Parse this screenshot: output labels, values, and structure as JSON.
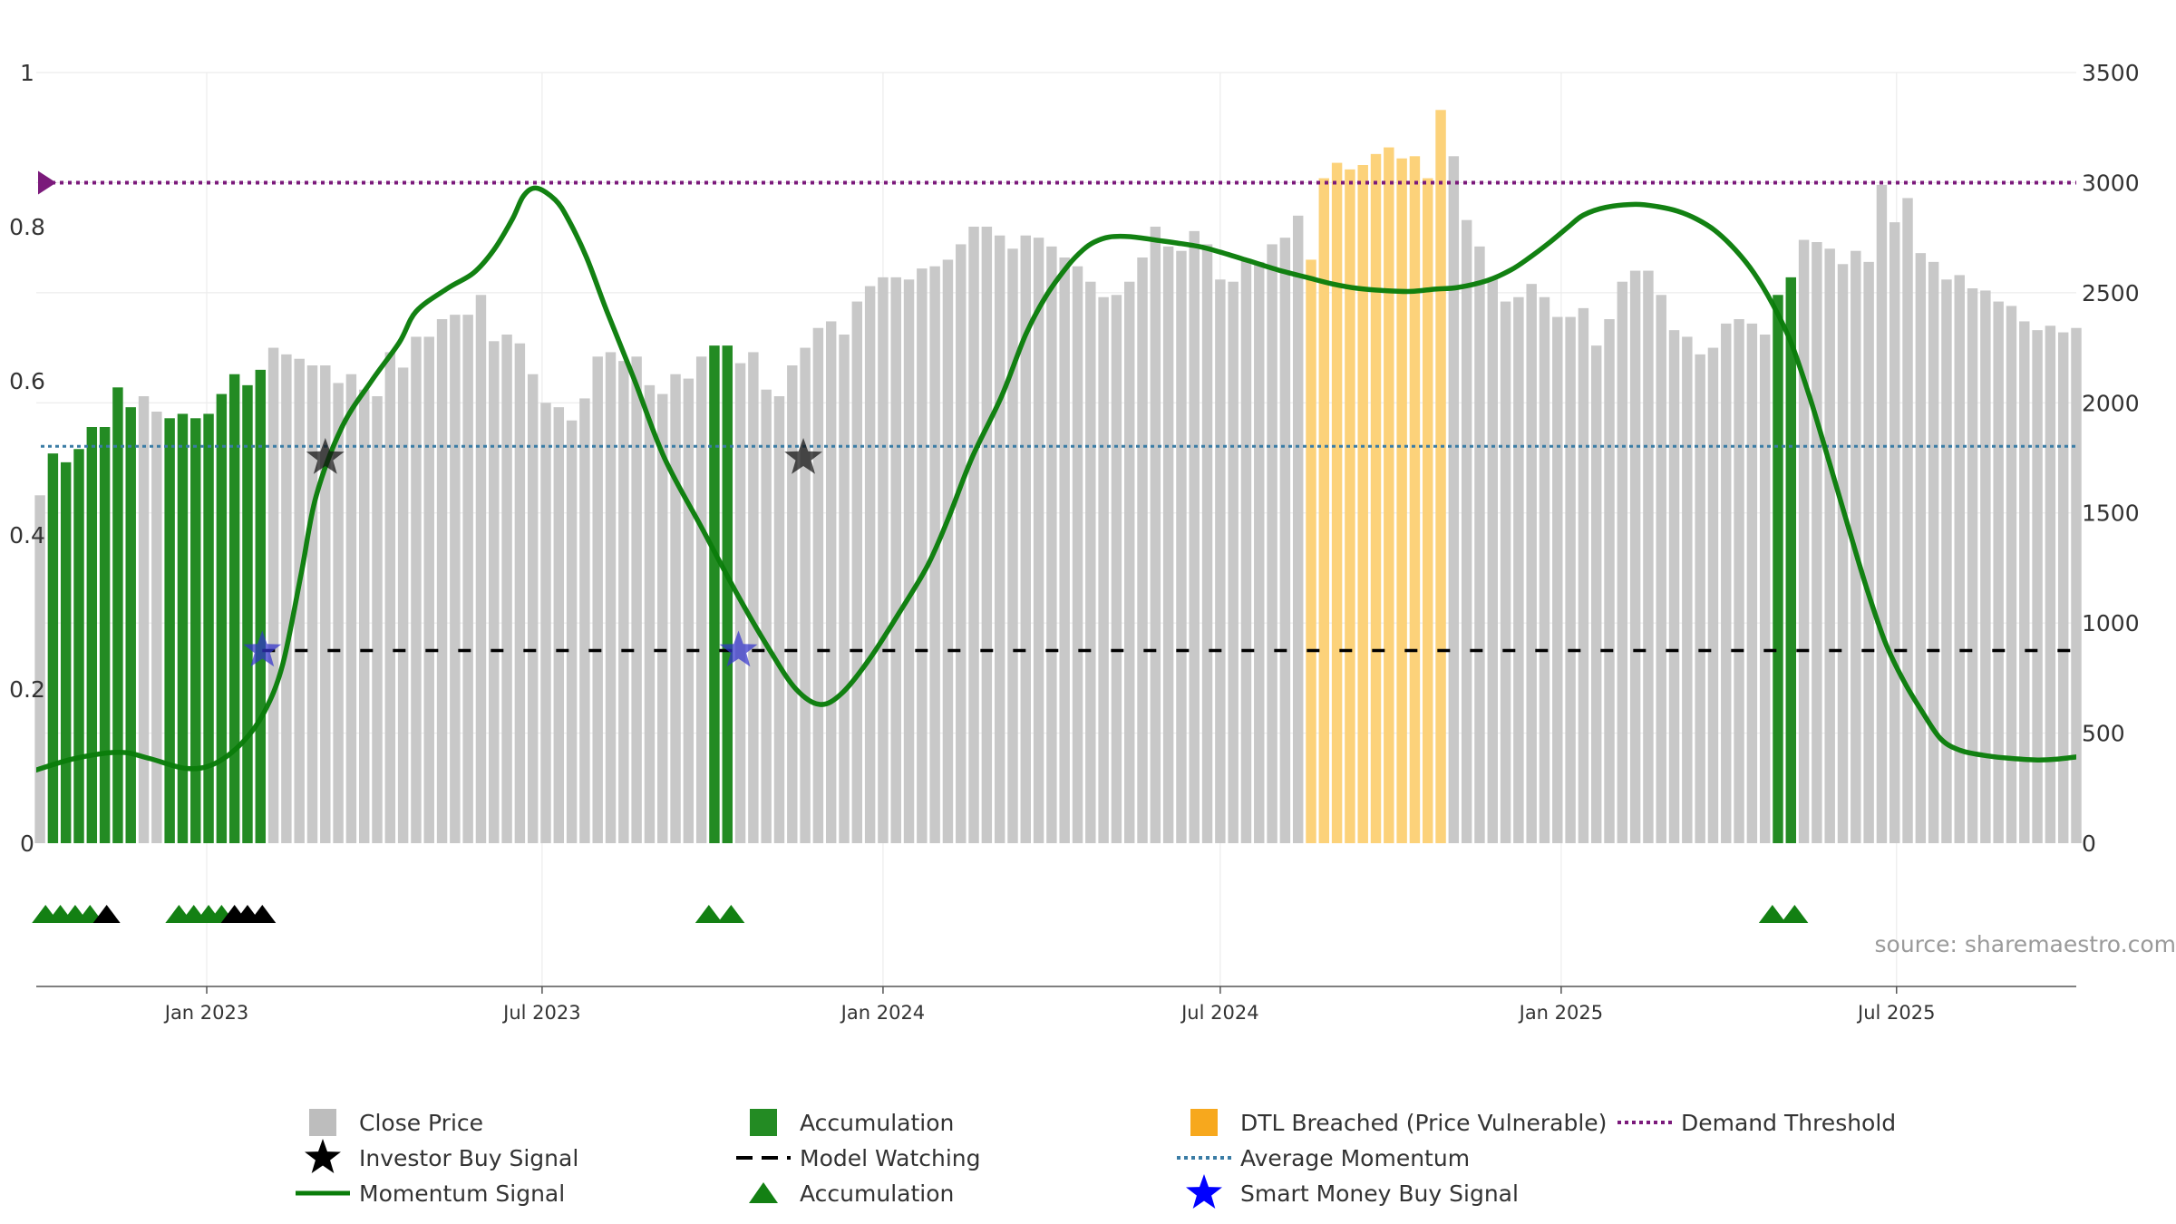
{
  "chart_data": {
    "type": "bar",
    "title": "",
    "x_range": [
      "2022-10-01",
      "2025-10-06"
    ],
    "left_axis": {
      "range": [
        0,
        1
      ],
      "ticks": [
        "0",
        "0.2",
        "0.4",
        "0.6",
        "0.8",
        "1"
      ],
      "tick_values": [
        0,
        0.2,
        0.4,
        0.6,
        0.8,
        1
      ]
    },
    "right_axis": {
      "range": [
        0,
        3500
      ],
      "ticks": [
        "0",
        "500",
        "1000",
        "1500",
        "2000",
        "2500",
        "3000",
        "3500"
      ],
      "tick_values": [
        0,
        500,
        1000,
        1500,
        2000,
        2500,
        3000,
        3500
      ]
    },
    "x_ticks": [
      {
        "label": "Jan 2023",
        "date": "2023-01-01"
      },
      {
        "label": "Jul 2023",
        "date": "2023-07-01"
      },
      {
        "label": "Jan 2024",
        "date": "2024-01-01"
      },
      {
        "label": "Jul 2024",
        "date": "2024-07-01"
      },
      {
        "label": "Jan 2025",
        "date": "2025-01-01"
      },
      {
        "label": "Jul 2025",
        "date": "2025-07-01"
      }
    ],
    "grid": true,
    "legend_position": "bottom",
    "close_price": {
      "start_date": "2022-10-03",
      "interval": "weekly",
      "values": [
        1580,
        1770,
        1730,
        1790,
        1890,
        1890,
        2070,
        1980,
        2030,
        1960,
        1930,
        1950,
        1930,
        1950,
        2040,
        2130,
        2080,
        2150,
        2250,
        2220,
        2200,
        2170,
        2170,
        2090,
        2130,
        2060,
        2030,
        2230,
        2160,
        2300,
        2300,
        2380,
        2400,
        2400,
        2490,
        2280,
        2310,
        2270,
        2130,
        2000,
        1980,
        1920,
        2020,
        2210,
        2230,
        2190,
        2210,
        2080,
        2040,
        2130,
        2110,
        2210,
        2260,
        2260,
        2180,
        2230,
        2060,
        2030,
        2170,
        2250,
        2340,
        2370,
        2310,
        2460,
        2530,
        2570,
        2570,
        2560,
        2610,
        2620,
        2650,
        2720,
        2800,
        2800,
        2760,
        2700,
        2760,
        2750,
        2710,
        2660,
        2620,
        2550,
        2480,
        2490,
        2550,
        2660,
        2800,
        2710,
        2690,
        2780,
        2720,
        2560,
        2550,
        2650,
        2640,
        2720,
        2750,
        2850,
        2650,
        3020,
        3090,
        3060,
        3080,
        3130,
        3160,
        3110,
        3120,
        3020,
        3330,
        3120,
        2830,
        2710,
        2560,
        2460,
        2480,
        2540,
        2480,
        2390,
        2390,
        2430,
        2260,
        2380,
        2550,
        2600,
        2600,
        2490,
        2330,
        2300,
        2220,
        2250,
        2360,
        2380,
        2360,
        2310,
        2490,
        2570,
        2740,
        2730,
        2700,
        2630,
        2690,
        2640,
        2990,
        2820,
        2930,
        2680,
        2640,
        2560,
        2580,
        2520,
        2510,
        2460,
        2440,
        2370,
        2330,
        2350,
        2320,
        2340
      ],
      "colored_bars": [
        {
          "class": "accumulation",
          "from": "2022-10-10",
          "to": "2022-11-21"
        },
        {
          "class": "accumulation",
          "from": "2022-12-12",
          "to": "2023-01-30"
        },
        {
          "class": "accumulation",
          "from": "2023-10-02",
          "to": "2023-10-09"
        },
        {
          "class": "dtl_breached",
          "from": "2024-08-19",
          "to": "2024-10-28"
        },
        {
          "class": "accumulation",
          "from": "2025-04-28",
          "to": "2025-05-05"
        }
      ]
    },
    "momentum_signal": {
      "points": [
        [
          "2022-10-01",
          0.095
        ],
        [
          "2022-10-22",
          0.11
        ],
        [
          "2022-11-15",
          0.118
        ],
        [
          "2022-12-01",
          0.11
        ],
        [
          "2022-12-21",
          0.097
        ],
        [
          "2023-01-05",
          0.103
        ],
        [
          "2023-01-20",
          0.13
        ],
        [
          "2023-02-01",
          0.17
        ],
        [
          "2023-02-11",
          0.232
        ],
        [
          "2023-02-21",
          0.35
        ],
        [
          "2023-03-01",
          0.45
        ],
        [
          "2023-03-15",
          0.54
        ],
        [
          "2023-03-31",
          0.6
        ],
        [
          "2023-04-15",
          0.65
        ],
        [
          "2023-04-24",
          0.69
        ],
        [
          "2023-05-11",
          0.72
        ],
        [
          "2023-05-25",
          0.74
        ],
        [
          "2023-06-05",
          0.77
        ],
        [
          "2023-06-15",
          0.81
        ],
        [
          "2023-06-21",
          0.84
        ],
        [
          "2023-06-28",
          0.85
        ],
        [
          "2023-07-08",
          0.835
        ],
        [
          "2023-07-15",
          0.81
        ],
        [
          "2023-07-25",
          0.76
        ],
        [
          "2023-08-05",
          0.69
        ],
        [
          "2023-08-20",
          0.6
        ],
        [
          "2023-09-05",
          0.5
        ],
        [
          "2023-09-25",
          0.41
        ],
        [
          "2023-10-15",
          0.32
        ],
        [
          "2023-11-01",
          0.25
        ],
        [
          "2023-11-15",
          0.2
        ],
        [
          "2023-11-28",
          0.18
        ],
        [
          "2023-12-10",
          0.195
        ],
        [
          "2023-12-25",
          0.24
        ],
        [
          "2024-01-10",
          0.3
        ],
        [
          "2024-01-25",
          0.36
        ],
        [
          "2024-02-05",
          0.42
        ],
        [
          "2024-02-18",
          0.5
        ],
        [
          "2024-03-05",
          0.58
        ],
        [
          "2024-03-18",
          0.66
        ],
        [
          "2024-03-29",
          0.71
        ],
        [
          "2024-04-10",
          0.75
        ],
        [
          "2024-04-18",
          0.77
        ],
        [
          "2024-04-24",
          0.78
        ],
        [
          "2024-05-02",
          0.7865
        ],
        [
          "2024-05-13",
          0.787
        ],
        [
          "2024-05-29",
          0.782
        ],
        [
          "2024-06-07",
          0.779
        ],
        [
          "2024-06-20",
          0.774
        ],
        [
          "2024-07-01",
          0.767
        ],
        [
          "2024-07-16",
          0.756
        ],
        [
          "2024-08-01",
          0.744
        ],
        [
          "2024-08-17",
          0.734
        ],
        [
          "2024-08-30",
          0.726
        ],
        [
          "2024-09-13",
          0.72
        ],
        [
          "2024-09-28",
          0.717
        ],
        [
          "2024-10-12",
          0.716
        ],
        [
          "2024-10-25",
          0.719
        ],
        [
          "2024-11-06",
          0.721
        ],
        [
          "2024-11-22",
          0.73
        ],
        [
          "2024-12-05",
          0.744
        ],
        [
          "2024-12-15",
          0.76
        ],
        [
          "2024-12-26",
          0.78
        ],
        [
          "2025-01-05",
          0.8
        ],
        [
          "2025-01-13",
          0.815
        ],
        [
          "2025-01-25",
          0.825
        ],
        [
          "2025-02-10",
          0.829
        ],
        [
          "2025-02-22",
          0.826
        ],
        [
          "2025-03-05",
          0.82
        ],
        [
          "2025-03-15",
          0.81
        ],
        [
          "2025-03-25",
          0.795
        ],
        [
          "2025-04-05",
          0.77
        ],
        [
          "2025-04-15",
          0.74
        ],
        [
          "2025-04-25",
          0.7
        ],
        [
          "2025-05-05",
          0.65
        ],
        [
          "2025-05-15",
          0.58
        ],
        [
          "2025-05-25",
          0.5
        ],
        [
          "2025-06-05",
          0.41
        ],
        [
          "2025-06-15",
          0.33
        ],
        [
          "2025-06-25",
          0.26
        ],
        [
          "2025-07-05",
          0.21
        ],
        [
          "2025-07-15",
          0.17
        ],
        [
          "2025-07-25",
          0.135
        ],
        [
          "2025-08-05",
          0.12
        ],
        [
          "2025-08-20",
          0.113
        ],
        [
          "2025-09-01",
          0.11
        ],
        [
          "2025-09-15",
          0.108
        ],
        [
          "2025-09-25",
          0.109
        ],
        [
          "2025-10-06",
          0.112
        ]
      ]
    },
    "average_momentum": 0.515,
    "demand_threshold": 0.857,
    "model_watching_level": 0.25,
    "investor_buy_signals": [
      {
        "date": "2023-03-06",
        "value": 0.5
      },
      {
        "date": "2023-11-19",
        "value": 0.5
      }
    ],
    "smart_money_buy_signals": [
      {
        "date": "2023-01-31",
        "value": 0.25
      },
      {
        "date": "2023-10-15",
        "value": 0.25
      }
    ],
    "accumulation_markers": [
      {
        "date": "2022-10-06",
        "color": "green"
      },
      {
        "date": "2022-10-14",
        "color": "green"
      },
      {
        "date": "2022-10-22",
        "color": "green"
      },
      {
        "date": "2022-10-30",
        "color": "green"
      },
      {
        "date": "2022-11-08",
        "color": "black"
      },
      {
        "date": "2022-12-17",
        "color": "green"
      },
      {
        "date": "2022-12-25",
        "color": "green"
      },
      {
        "date": "2023-01-02",
        "color": "green"
      },
      {
        "date": "2023-01-09",
        "color": "green"
      },
      {
        "date": "2023-01-16",
        "color": "black"
      },
      {
        "date": "2023-01-23",
        "color": "black"
      },
      {
        "date": "2023-01-31",
        "color": "black"
      },
      {
        "date": "2023-09-29",
        "color": "green"
      },
      {
        "date": "2023-10-11",
        "color": "green"
      },
      {
        "date": "2025-04-25",
        "color": "green"
      },
      {
        "date": "2025-05-07",
        "color": "green"
      }
    ],
    "source": "source: sharemaestro.com",
    "legend": [
      {
        "label": "Close Price",
        "symbol": "square",
        "color": "#bdbdbd"
      },
      {
        "label": "Investor Buy Signal",
        "symbol": "star",
        "color": "#000000"
      },
      {
        "label": "Momentum Signal",
        "symbol": "line",
        "color": "#0a7d0a"
      },
      {
        "label": "Accumulation",
        "symbol": "square",
        "color": "#238b23"
      },
      {
        "label": "Model Watching",
        "symbol": "dash",
        "color": "#000000"
      },
      {
        "label": "Accumulation",
        "symbol": "triangle",
        "color": "#138013"
      },
      {
        "label": "DTL Breached (Price Vulnerable)",
        "symbol": "square",
        "color": "#f7a81d"
      },
      {
        "label": "Average Momentum",
        "symbol": "dot",
        "color": "#3a7ca5"
      },
      {
        "label": "Smart Money Buy Signal",
        "symbol": "star",
        "color": "#0000ff"
      },
      {
        "label": "Demand Threshold",
        "symbol": "dot",
        "color": "#7b1a7b"
      }
    ],
    "colors": {
      "close_price": "#c8c8c8",
      "accumulation": "#238b23",
      "dtl_breached": "#fcd27a",
      "momentum": "#0a7d0a",
      "average_momentum": "#3a7ca5",
      "demand_threshold": "#7b1a7b",
      "model_watching": "#000000",
      "investor_star": "#111111",
      "smart_money_star": "#3333cc",
      "grid": "#ececec"
    }
  }
}
